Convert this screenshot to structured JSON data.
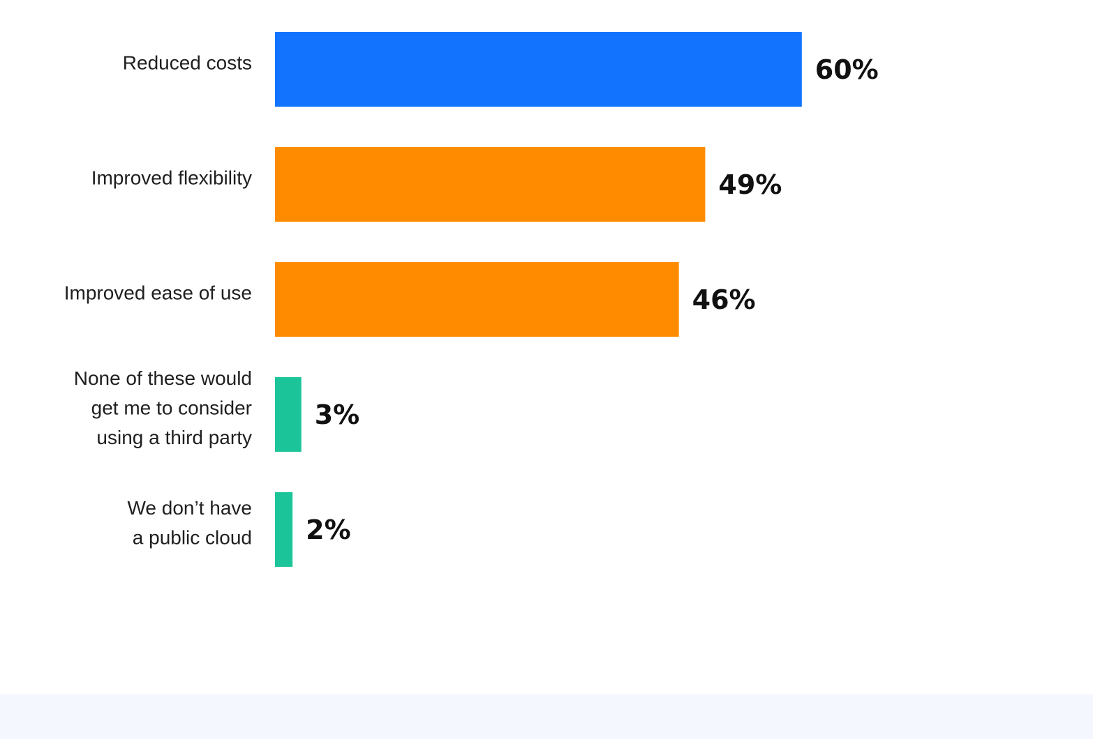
{
  "chart_data": {
    "type": "bar",
    "orientation": "horizontal",
    "categories": [
      [
        "Reduced costs"
      ],
      [
        "Improved flexibility"
      ],
      [
        "Improved ease of use"
      ],
      [
        "None of these would",
        "get me to consider",
        "using a third party"
      ],
      [
        "We don’t have",
        "a public cloud"
      ]
    ],
    "values": [
      60,
      49,
      46,
      3,
      2
    ],
    "value_labels": [
      "60%",
      "49%",
      "46%",
      "3%",
      "2%"
    ],
    "bar_colors": [
      "#1273ff",
      "#ff8c00",
      "#ff8c00",
      "#1cc49a",
      "#1cc49a"
    ],
    "xlim": [
      0,
      100
    ],
    "title": "",
    "xlabel": "",
    "ylabel": "",
    "grid": false,
    "legend": "none"
  },
  "colors": {
    "footer_band": "#f4f7fe",
    "label_text": "#1f1f1f",
    "value_text": "#111111"
  }
}
